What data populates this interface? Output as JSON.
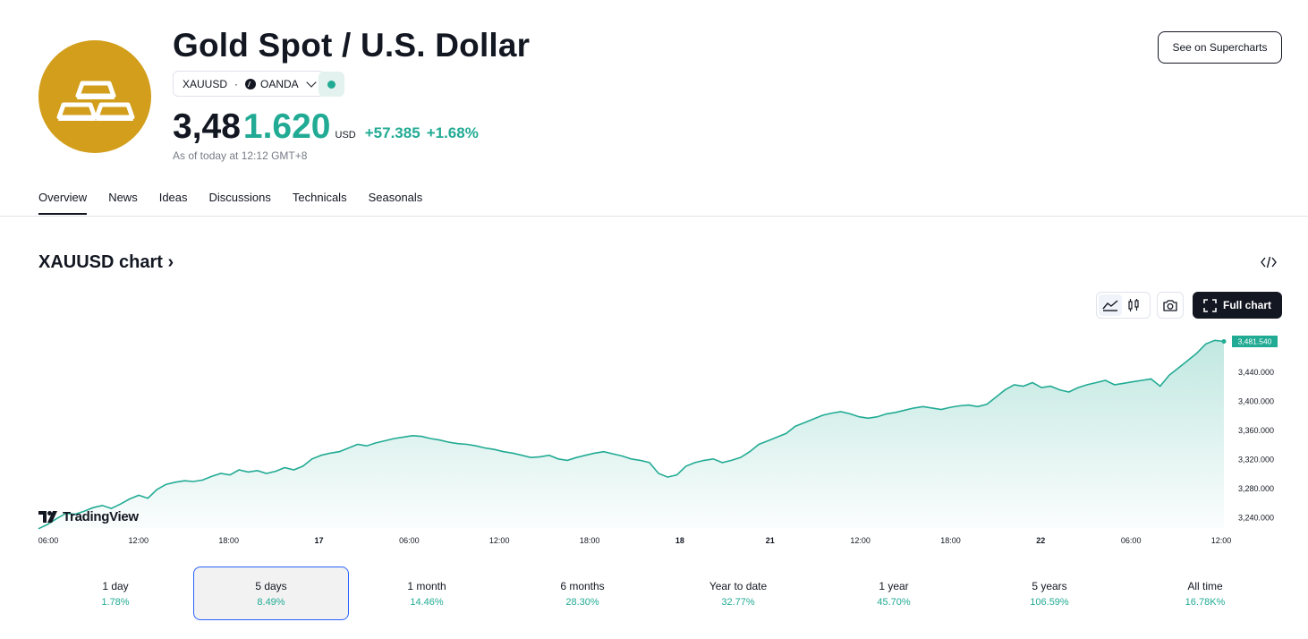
{
  "header": {
    "title": "Gold Spot / U.S. Dollar",
    "symbol": "XAUUSD",
    "exchange": "OANDA",
    "price_int": "3,48",
    "price_frac": "1.620",
    "currency": "USD",
    "change": "+57.385",
    "change_pct": "+1.68%",
    "as_of": "As of today at 12:12 GMT+8",
    "supercharts_label": "See on Supercharts",
    "logo_color": "#d29e1b",
    "accent_color": "#22ab94"
  },
  "tabs": [
    {
      "label": "Overview",
      "active": true
    },
    {
      "label": "News"
    },
    {
      "label": "Ideas"
    },
    {
      "label": "Discussions"
    },
    {
      "label": "Technicals"
    },
    {
      "label": "Seasonals"
    }
  ],
  "chart_section": {
    "title": "XAUUSD chart",
    "full_chart_label": "Full chart",
    "watermark": "TradingView",
    "icons": [
      "embed-code-icon",
      "area-chart-icon",
      "candles-icon",
      "camera-icon",
      "fullscreen-icon"
    ]
  },
  "chart_data": {
    "type": "area",
    "x_tick_labels": [
      "06:00",
      "12:00",
      "18:00",
      "17",
      "06:00",
      "12:00",
      "18:00",
      "18",
      "21",
      "12:00",
      "18:00",
      "22",
      "06:00",
      "12:00"
    ],
    "y_tick_labels": [
      "3,440.000",
      "3,400.000",
      "3,360.000",
      "3,320.000",
      "3,280.000",
      "3,240.000"
    ],
    "ylim": [
      3225,
      3492
    ],
    "last_value_label": "3,481.540",
    "last_value": 3481.54,
    "series_color": "#22ab94",
    "grid": false,
    "values": [
      3224,
      3230,
      3238,
      3245,
      3244,
      3248,
      3253,
      3256,
      3252,
      3258,
      3265,
      3270,
      3266,
      3278,
      3285,
      3288,
      3290,
      3289,
      3291,
      3296,
      3300,
      3298,
      3305,
      3302,
      3304,
      3300,
      3303,
      3308,
      3305,
      3310,
      3320,
      3325,
      3328,
      3330,
      3335,
      3340,
      3338,
      3342,
      3345,
      3348,
      3350,
      3352,
      3351,
      3348,
      3346,
      3343,
      3341,
      3340,
      3338,
      3335,
      3333,
      3330,
      3328,
      3325,
      3322,
      3323,
      3325,
      3320,
      3318,
      3322,
      3325,
      3328,
      3330,
      3327,
      3324,
      3320,
      3318,
      3315,
      3300,
      3295,
      3298,
      3310,
      3315,
      3318,
      3320,
      3315,
      3318,
      3322,
      3330,
      3340,
      3345,
      3350,
      3355,
      3365,
      3370,
      3375,
      3380,
      3383,
      3385,
      3382,
      3378,
      3376,
      3378,
      3382,
      3384,
      3387,
      3390,
      3392,
      3390,
      3388,
      3391,
      3393,
      3394,
      3392,
      3395,
      3405,
      3415,
      3422,
      3420,
      3425,
      3418,
      3420,
      3415,
      3412,
      3418,
      3422,
      3425,
      3428,
      3422,
      3424,
      3426,
      3428,
      3430,
      3420,
      3435,
      3445,
      3455,
      3465,
      3478,
      3483,
      3481.54
    ]
  },
  "periods": [
    {
      "label": "1 day",
      "value": "1.78%"
    },
    {
      "label": "5 days",
      "value": "8.49%",
      "active": true
    },
    {
      "label": "1 month",
      "value": "14.46%"
    },
    {
      "label": "6 months",
      "value": "28.30%"
    },
    {
      "label": "Year to date",
      "value": "32.77%"
    },
    {
      "label": "1 year",
      "value": "45.70%"
    },
    {
      "label": "5 years",
      "value": "106.59%"
    },
    {
      "label": "All time",
      "value": "16.78K%"
    }
  ]
}
